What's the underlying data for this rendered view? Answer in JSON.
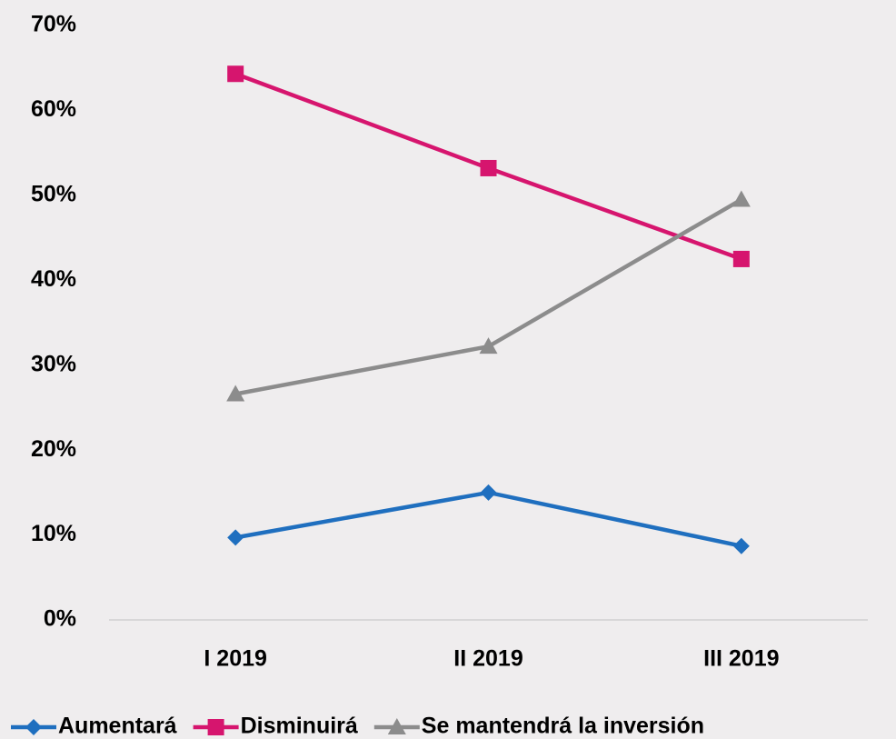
{
  "chart_data": {
    "type": "line",
    "categories": [
      "I 2019",
      "II 2019",
      "III 2019"
    ],
    "series": [
      {
        "name": "Aumentará",
        "color": "#1f6fbf",
        "marker": "diamond",
        "values": [
          9.7,
          15.0,
          8.7
        ]
      },
      {
        "name": "Disminuirá",
        "color": "#d6156e",
        "marker": "square",
        "values": [
          64.3,
          53.2,
          42.5
        ]
      },
      {
        "name": "Se mantendrá la inversión",
        "color": "#8c8c8c",
        "marker": "triangle",
        "values": [
          26.6,
          32.2,
          49.5
        ]
      }
    ],
    "ylim": [
      0,
      70
    ],
    "yticks": [
      {
        "value": 0,
        "label": "0%"
      },
      {
        "value": 10,
        "label": "10%"
      },
      {
        "value": 20,
        "label": "20%"
      },
      {
        "value": 30,
        "label": "30%"
      },
      {
        "value": 40,
        "label": "40%"
      },
      {
        "value": 50,
        "label": "50%"
      },
      {
        "value": 60,
        "label": "60%"
      },
      {
        "value": 70,
        "label": "70%"
      }
    ],
    "legend": "bottom"
  }
}
